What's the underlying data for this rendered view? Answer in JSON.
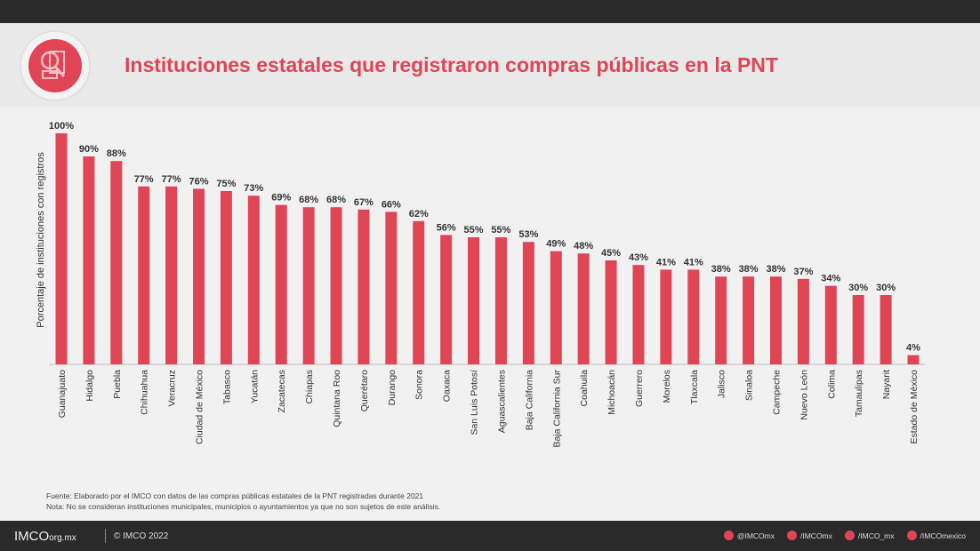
{
  "title": "Instituciones estatales que registraron compras públicas en la PNT",
  "notes": {
    "source": "Fuente: Elaborado por el IMCO con datos de las compras públicas estatales de la PNT registradas durante 2021",
    "note": "Nota: No se consideran instituciones municipales, municipios o ayuntamientos ya que no son sujetos de este análisis."
  },
  "footer": {
    "brand": "IMCO",
    "domain": "org.mx",
    "copyright": "© IMCO 2022",
    "socials": [
      {
        "icon": "twitter-icon",
        "handle": "@IMCOmx"
      },
      {
        "icon": "facebook-icon",
        "handle": "/IMCOmx"
      },
      {
        "icon": "instagram-icon",
        "handle": "/IMCO_mx"
      },
      {
        "icon": "youtube-icon",
        "handle": "/IMCOmexico"
      }
    ]
  },
  "colors": {
    "accent": "#e04556",
    "background": "#f1f1f1",
    "bars": "#e04556"
  },
  "chart_data": {
    "type": "bar",
    "title": "Instituciones estatales que registraron compras públicas en la PNT",
    "ylabel": "Porcentaje de instituciones con registros",
    "xlabel": "",
    "ylim": [
      0,
      100
    ],
    "grid": false,
    "categories": [
      "Guanajuato",
      "Hidalgo",
      "Puebla",
      "Chihuahua",
      "Veracruz",
      "Ciudad de México",
      "Tabasco",
      "Yucatán",
      "Zacatecas",
      "Chiapas",
      "Quintana Roo",
      "Querétaro",
      "Durango",
      "Sonora",
      "Oaxaca",
      "San Luis Potosí",
      "Aguascalientes",
      "Baja California",
      "Baja California Sur",
      "Coahuila",
      "Michoacán",
      "Guerrero",
      "Morelos",
      "Tlaxcala",
      "Jalisco",
      "Sinaloa",
      "Campeche",
      "Nuevo León",
      "Colima",
      "Tamaulipas",
      "Nayarit",
      "Estado de México"
    ],
    "values": [
      100,
      90,
      88,
      77,
      77,
      76,
      75,
      73,
      69,
      68,
      68,
      67,
      66,
      62,
      56,
      55,
      55,
      53,
      49,
      48,
      45,
      43,
      41,
      41,
      38,
      38,
      38,
      37,
      34,
      30,
      30,
      4
    ],
    "value_suffix": "%"
  }
}
